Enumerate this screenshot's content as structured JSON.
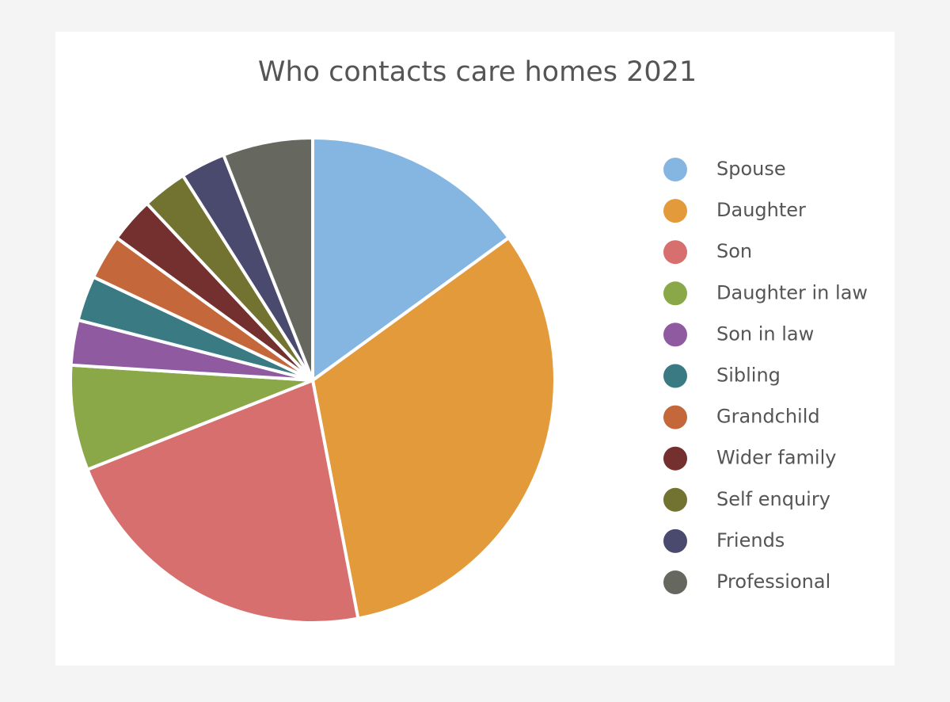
{
  "chart_data": {
    "type": "pie",
    "title": "Who contacts care homes 2021",
    "categories": [
      "Spouse",
      "Daughter",
      "Son",
      "Daughter in law",
      "Son in law",
      "Sibling",
      "Grandchild",
      "Wider family",
      "Self enquiry",
      "Friends",
      "Professional"
    ],
    "values": [
      15,
      32,
      22,
      7,
      3,
      3,
      3,
      3,
      3,
      3,
      6
    ],
    "colors": [
      "#85b6e2",
      "#e39a3b",
      "#d66f6d",
      "#8aa847",
      "#8f5aa0",
      "#3a7a83",
      "#c4683c",
      "#742f2f",
      "#727330",
      "#4a4a6e",
      "#666860"
    ],
    "legend": "right"
  }
}
